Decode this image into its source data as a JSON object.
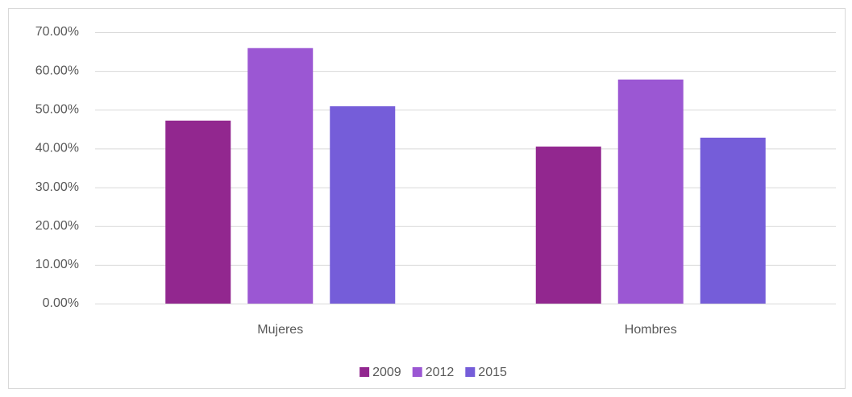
{
  "chart_data": {
    "type": "bar",
    "categories": [
      "Mujeres",
      "Hombres"
    ],
    "series": [
      {
        "name": "2009",
        "color": "#92278f",
        "values": [
          47.2,
          40.5
        ]
      },
      {
        "name": "2012",
        "color": "#9b57d3",
        "values": [
          65.9,
          57.8
        ]
      },
      {
        "name": "2015",
        "color": "#755dd9",
        "values": [
          50.9,
          42.8
        ]
      }
    ],
    "ylim": [
      0,
      70
    ],
    "yticks": [
      {
        "value": 0,
        "label": "0.00%"
      },
      {
        "value": 10,
        "label": "10.00%"
      },
      {
        "value": 20,
        "label": "20.00%"
      },
      {
        "value": 30,
        "label": "30.00%"
      },
      {
        "value": 40,
        "label": "40.00%"
      },
      {
        "value": 50,
        "label": "50.00%"
      },
      {
        "value": 60,
        "label": "60.00%"
      },
      {
        "value": 70,
        "label": "70.00%"
      }
    ],
    "grid": true,
    "legend": "bottom"
  }
}
